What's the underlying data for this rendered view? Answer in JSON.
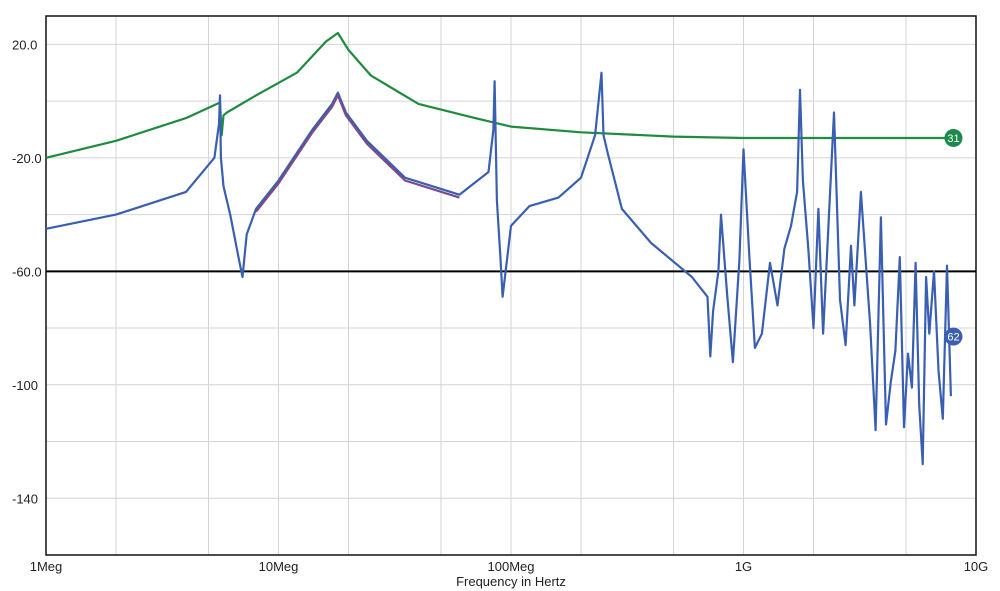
{
  "chart_data": {
    "type": "line",
    "xlabel": "Frequency in Hertz",
    "ylabel": "",
    "x_scale": "log",
    "xlim": [
      1000000,
      10000000000
    ],
    "ylim": [
      -160,
      30
    ],
    "grid": true,
    "x_ticks": [
      {
        "value": 1000000,
        "label": "1Meg"
      },
      {
        "value": 10000000,
        "label": "10Meg"
      },
      {
        "value": 100000000,
        "label": "100Meg"
      },
      {
        "value": 1000000000,
        "label": "1G"
      },
      {
        "value": 10000000000,
        "label": "10G"
      }
    ],
    "y_ticks": [
      {
        "value": 20,
        "label": "20.0"
      },
      {
        "value": -20,
        "label": "-20.0"
      },
      {
        "value": -60,
        "label": "-60.0"
      },
      {
        "value": -100,
        "label": "-100"
      },
      {
        "value": -140,
        "label": "-140"
      }
    ],
    "reference_line": -60,
    "markers": [
      {
        "label": "31",
        "x": 8000000000,
        "y": -13,
        "color": "#1a8a4a"
      },
      {
        "label": "62",
        "x": 8000000000,
        "y": -83,
        "color": "#3a5fb0"
      }
    ],
    "series": [
      {
        "color": "#1f8b3e",
        "x": [
          1000000,
          2000000,
          4000000,
          5600000,
          5700000,
          5800000,
          6000000,
          8000000,
          12000000,
          16000000,
          18000000,
          20000000,
          25000000,
          40000000,
          70000000,
          100000000,
          200000000,
          500000000,
          1000000000,
          3000000000,
          8000000000
        ],
        "y": [
          -20,
          -14,
          -6,
          -0.5,
          -12,
          -5,
          -4,
          2,
          10,
          21,
          24,
          18,
          9,
          -1,
          -6,
          -9,
          -11,
          -12.5,
          -13,
          -13,
          -13
        ]
      },
      {
        "color": "#3a5fb0",
        "x": [
          1000000,
          2000000,
          4000000,
          5300000,
          5550000,
          5600000,
          5650000,
          5800000,
          6200000,
          6800000,
          7000000,
          7300000,
          8000000,
          10000000,
          14000000,
          17000000,
          18000000,
          19500000,
          24000000,
          35000000,
          60000000,
          80000000,
          84000000,
          85000000,
          87000000,
          90000000,
          92000000,
          100000000,
          120000000,
          160000000,
          200000000,
          230000000,
          245000000,
          250000000,
          260000000,
          300000000,
          400000000,
          600000000,
          700000000,
          720000000,
          740000000,
          780000000,
          800000000,
          850000000,
          900000000,
          960000000,
          1000000000,
          1060000000,
          1120000000,
          1200000000,
          1300000000,
          1400000000,
          1500000000,
          1600000000,
          1700000000,
          1750000000,
          1800000000,
          1900000000,
          2000000000,
          2100000000,
          2200000000,
          2300000000,
          2450000000,
          2600000000,
          2750000000,
          2900000000,
          3000000000,
          3200000000,
          3500000000,
          3700000000,
          3900000000,
          4100000000,
          4300000000,
          4500000000,
          4700000000,
          4900000000,
          5100000000,
          5300000000,
          5500000000,
          5700000000,
          5900000000,
          6100000000,
          6300000000,
          6600000000,
          6900000000,
          7200000000,
          7500000000,
          7800000000
        ],
        "y": [
          -45,
          -40,
          -32,
          -20,
          -8,
          2,
          -20,
          -30,
          -40,
          -57,
          -62,
          -47,
          -38,
          -28,
          -10,
          -1,
          3,
          -4,
          -14,
          -27,
          -33,
          -25,
          -10,
          7,
          -35,
          -55,
          -69,
          -44,
          -37,
          -34,
          -27,
          -12,
          10,
          -12,
          -18,
          -38,
          -50,
          -62,
          -69,
          -90,
          -74,
          -60,
          -40,
          -68,
          -92,
          -56,
          -17,
          -55,
          -87,
          -82,
          -57,
          -72,
          -52,
          -44,
          -32,
          4,
          -28,
          -52,
          -80,
          -38,
          -82,
          -50,
          -4,
          -70,
          -86,
          -51,
          -72,
          -32,
          -78,
          -116,
          -41,
          -114,
          -99,
          -88,
          -55,
          -115,
          -89,
          -101,
          -57,
          -107,
          -128,
          -62,
          -82,
          -60,
          -95,
          -112,
          -58,
          -104
        ]
      },
      {
        "color": "#7a4a8a",
        "x": [
          8000000,
          10000000,
          14000000,
          17000000,
          18000000,
          19500000,
          24000000,
          35000000,
          60000000
        ],
        "y": [
          -39,
          -29,
          -11,
          -2,
          2,
          -5,
          -15,
          -28,
          -34
        ]
      }
    ]
  }
}
